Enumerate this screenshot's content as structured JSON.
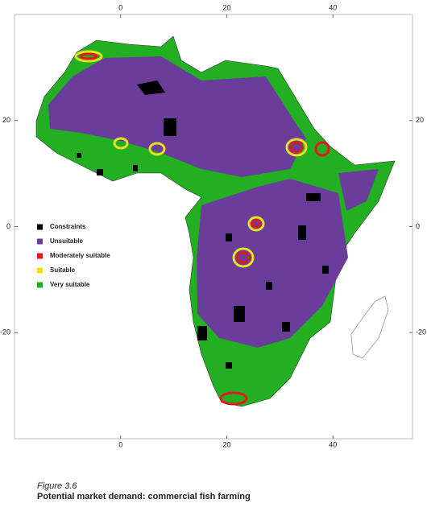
{
  "map": {
    "xlim": [
      -20,
      55
    ],
    "ylim": [
      -40,
      40
    ],
    "xticks": [
      0,
      20,
      40
    ],
    "yticks": [
      20,
      0,
      -20
    ],
    "legend": [
      {
        "name": "Constraints",
        "color": "#000000"
      },
      {
        "name": "Unsuitable",
        "color": "#6a3d9a"
      },
      {
        "name": "Moderately suitable",
        "color": "#e31a1c"
      },
      {
        "name": "Suitable",
        "color": "#e8e020"
      },
      {
        "name": "Very suitable",
        "color": "#22b022"
      }
    ]
  },
  "caption": {
    "label": "Figure 3.6",
    "title": "Potential market demand: commercial fish farming"
  }
}
